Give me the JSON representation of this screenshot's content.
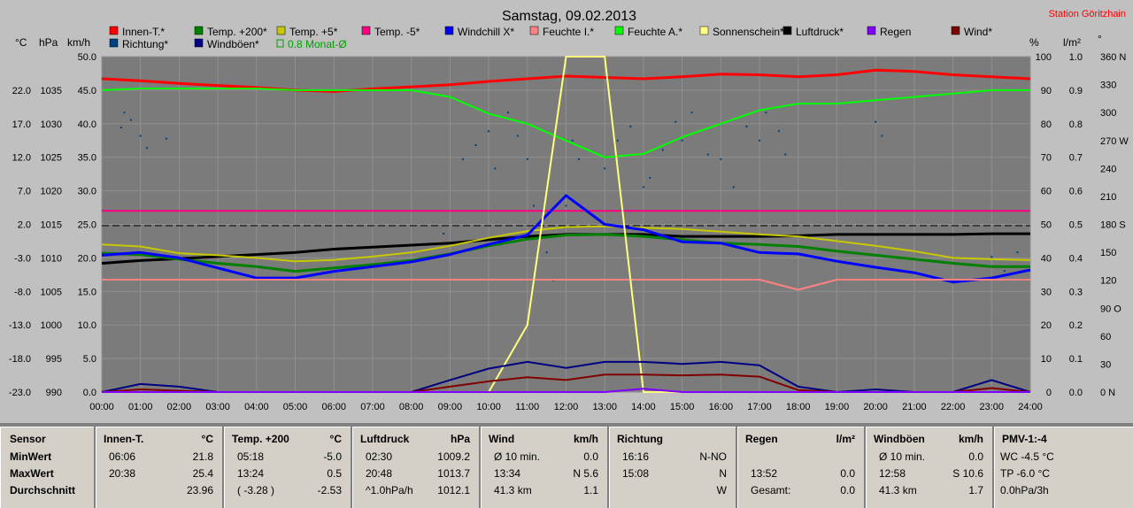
{
  "title": "Samstag, 09.02.2013",
  "station": "Station Göritzhain",
  "legend": [
    {
      "label": "Innen-T.*",
      "color": "#ff0000"
    },
    {
      "label": "Temp. +200*",
      "color": "#008000"
    },
    {
      "label": "Temp. +5*",
      "color": "#c8c800"
    },
    {
      "label": "Temp. -5*",
      "color": "#ff0080"
    },
    {
      "label": "Windchill X*",
      "color": "#0000ff"
    },
    {
      "label": "Feuchte I.*",
      "color": "#ff8080"
    },
    {
      "label": "Feuchte A.*",
      "color": "#00ff00"
    },
    {
      "label": "Sonnenschein*",
      "color": "#ffff80"
    },
    {
      "label": "Luftdruck*",
      "color": "#000000"
    },
    {
      "label": "Regen",
      "color": "#8000ff"
    },
    {
      "label": "Wind*",
      "color": "#800000"
    },
    {
      "label": "Richtung*",
      "color": "#004080"
    },
    {
      "label": "Windböen*",
      "color": "#000080"
    },
    {
      "label": "0.8 Monat-Ø",
      "color": "#00a000"
    }
  ],
  "axis_units": {
    "c": "°C",
    "hpa": "hPa",
    "kmh": "km/h",
    "pct": "%",
    "lm2": "l/m²",
    "deg": "°"
  },
  "chart_data": {
    "type": "line",
    "x": [
      "00:00",
      "01:00",
      "02:00",
      "03:00",
      "04:00",
      "05:00",
      "06:00",
      "07:00",
      "08:00",
      "09:00",
      "10:00",
      "11:00",
      "12:00",
      "13:00",
      "14:00",
      "15:00",
      "16:00",
      "17:00",
      "18:00",
      "19:00",
      "20:00",
      "21:00",
      "22:00",
      "23:00",
      "24:00"
    ],
    "axes": {
      "temp_c": {
        "ticks": [
          "22.0",
          "17.0",
          "12.0",
          "7.0",
          "2.0",
          "-3.0",
          "-8.0",
          "-13.0",
          "-18.0",
          "-23.0"
        ],
        "range": [
          -23,
          27
        ]
      },
      "pressure_hpa": {
        "ticks": [
          "1035",
          "1030",
          "1025",
          "1020",
          "1015",
          "1010",
          "1005",
          "1000",
          "995",
          "990"
        ],
        "range": [
          990,
          1040
        ]
      },
      "wind_kmh": {
        "ticks": [
          "50.0",
          "45.0",
          "40.0",
          "35.0",
          "30.0",
          "25.0",
          "20.0",
          "15.0",
          "10.0",
          "5.0",
          "0.0"
        ],
        "range": [
          0,
          50
        ]
      },
      "humidity_pct": {
        "ticks": [
          "100",
          "90",
          "80",
          "70",
          "60",
          "50",
          "40",
          "30",
          "20",
          "10",
          "0"
        ],
        "range": [
          0,
          100
        ]
      },
      "rain_lm2": {
        "ticks": [
          "1.0",
          "0.9",
          "0.8",
          "0.7",
          "0.6",
          "0.5",
          "0.4",
          "0.3",
          "0.2",
          "0.1",
          "0.0"
        ],
        "range": [
          0,
          1
        ]
      },
      "direction_deg": {
        "ticks": [
          "360 N",
          "330",
          "300",
          "270 W",
          "240",
          "210",
          "180 S",
          "150",
          "120",
          "90 O",
          "60",
          "30",
          "0 N"
        ],
        "range": [
          0,
          360
        ]
      }
    },
    "series": [
      {
        "name": "Innen-T.*",
        "color": "#ff0000",
        "axis": "temp_c",
        "values": [
          23.7,
          23.4,
          23.0,
          22.7,
          22.4,
          22.0,
          21.8,
          22.2,
          22.5,
          22.8,
          23.3,
          23.7,
          24.1,
          23.9,
          23.7,
          24.0,
          24.4,
          24.3,
          24.0,
          24.3,
          25.0,
          24.8,
          24.3,
          24.0,
          23.7
        ]
      },
      {
        "name": "Feuchte A.*",
        "color": "#00ff00",
        "axis": "humidity_pct",
        "values": [
          90,
          90.5,
          90.5,
          90.5,
          90.5,
          90,
          90,
          90,
          90,
          88,
          83,
          80,
          75,
          70,
          71,
          76,
          80,
          84,
          86,
          86,
          87,
          88,
          89,
          90,
          90
        ]
      },
      {
        "name": "Temp. -5*",
        "color": "#ff0080",
        "axis": "temp_c",
        "values": [
          4.0,
          4.0,
          4.0,
          4.0,
          4.0,
          4.0,
          4.0,
          4.0,
          4.0,
          4.0,
          4.0,
          4.0,
          4.0,
          4.0,
          4.0,
          4.0,
          4.0,
          4.0,
          4.0,
          4.0,
          4.0,
          4.0,
          4.0,
          4.0,
          4.0
        ]
      },
      {
        "name": "Luftdruck*",
        "color": "#000000",
        "axis": "pressure_hpa",
        "values": [
          1009.2,
          1009.6,
          1009.9,
          1010.2,
          1010.5,
          1010.8,
          1011.3,
          1011.6,
          1011.9,
          1012.2,
          1012.7,
          1013.2,
          1013.5,
          1013.5,
          1013.5,
          1013.2,
          1013.2,
          1013.2,
          1013.3,
          1013.5,
          1013.5,
          1013.5,
          1013.5,
          1013.6,
          1013.6
        ]
      },
      {
        "name": "Temp. +5*",
        "color": "#c8c800",
        "axis": "temp_c",
        "values": [
          -1.0,
          -1.3,
          -2.3,
          -2.6,
          -3.0,
          -3.5,
          -3.3,
          -2.8,
          -2.2,
          -1.2,
          0.0,
          1.0,
          1.6,
          1.7,
          1.5,
          1.3,
          0.9,
          0.5,
          0.2,
          -0.5,
          -1.2,
          -2.0,
          -3.0,
          -3.2,
          -3.3
        ]
      },
      {
        "name": "Temp. +200*",
        "color": "#008000",
        "axis": "temp_c",
        "values": [
          -2.3,
          -2.5,
          -3.2,
          -3.8,
          -4.3,
          -5.0,
          -4.5,
          -4.0,
          -3.4,
          -2.4,
          -1.2,
          -0.2,
          0.4,
          0.5,
          0.2,
          -0.3,
          -0.8,
          -1.0,
          -1.3,
          -2.0,
          -2.6,
          -3.2,
          -3.8,
          -4.3,
          -4.3
        ]
      },
      {
        "name": "Windchill X*",
        "color": "#0000ff",
        "axis": "temp_c",
        "values": [
          -2.6,
          -2.2,
          -3.0,
          -4.5,
          -6.0,
          -6.0,
          -5.0,
          -4.3,
          -3.6,
          -2.5,
          -1.0,
          0.4,
          6.3,
          2.0,
          1.2,
          -0.6,
          -0.8,
          -2.2,
          -2.4,
          -3.5,
          -4.4,
          -5.2,
          -6.6,
          -6.0,
          -4.8
        ]
      },
      {
        "name": "Feuchte I.*",
        "color": "#ff8080",
        "axis": "humidity_pct",
        "values": [
          33.5,
          33.5,
          33.5,
          33.5,
          33.5,
          33.5,
          33.5,
          33.5,
          33.5,
          33.5,
          33.5,
          33.5,
          33.5,
          33.5,
          33.5,
          33.5,
          33.5,
          33.5,
          30.5,
          33.5,
          33.5,
          33.5,
          33.5,
          33.5,
          33.5
        ]
      },
      {
        "name": "Sonnenschein*",
        "color": "#ffff80",
        "axis": "humidity_pct",
        "values": [
          0,
          0,
          0,
          0,
          0,
          0,
          0,
          0,
          0,
          0,
          0,
          20,
          100,
          100,
          0,
          0,
          0,
          0,
          0,
          0,
          0,
          0,
          0,
          0,
          0
        ]
      },
      {
        "name": "Windböen*",
        "color": "#000080",
        "axis": "wind_kmh",
        "values": [
          0,
          1.2,
          0.8,
          0,
          0,
          0,
          0,
          0,
          0,
          1.8,
          3.5,
          4.5,
          3.6,
          4.5,
          4.5,
          4.2,
          4.5,
          4.0,
          0.8,
          0,
          0.4,
          0,
          0,
          1.8,
          0
        ]
      },
      {
        "name": "Wind*",
        "color": "#800000",
        "axis": "wind_kmh",
        "values": [
          0,
          0.4,
          0.2,
          0,
          0,
          0,
          0,
          0,
          0,
          0.8,
          1.6,
          2.2,
          1.8,
          2.6,
          2.6,
          2.5,
          2.6,
          2.3,
          0.3,
          0,
          0,
          0,
          0,
          0.6,
          0
        ]
      },
      {
        "name": "Regen",
        "color": "#8000ff",
        "axis": "rain_lm2",
        "values": [
          0,
          0,
          0,
          0,
          0,
          0,
          0,
          0,
          0,
          0,
          0,
          0,
          0,
          0,
          0.01,
          0,
          0,
          0,
          0,
          0,
          0,
          0,
          0,
          0,
          0
        ]
      }
    ],
    "scatter": {
      "name": "Richtung*",
      "color": "#004080",
      "axis": "direction_deg",
      "points": [
        [
          "00:30",
          284
        ],
        [
          "00:35",
          300
        ],
        [
          "00:45",
          292
        ],
        [
          "01:00",
          275
        ],
        [
          "01:10",
          262
        ],
        [
          "01:40",
          272
        ],
        [
          "08:50",
          170
        ],
        [
          "09:20",
          250
        ],
        [
          "09:40",
          265
        ],
        [
          "10:00",
          280
        ],
        [
          "10:10",
          240
        ],
        [
          "10:30",
          300
        ],
        [
          "10:45",
          275
        ],
        [
          "11:00",
          250
        ],
        [
          "11:10",
          200
        ],
        [
          "11:30",
          150
        ],
        [
          "11:40",
          120
        ],
        [
          "12:00",
          200
        ],
        [
          "12:10",
          270
        ],
        [
          "12:20",
          250
        ],
        [
          "13:00",
          240
        ],
        [
          "13:20",
          270
        ],
        [
          "13:40",
          285
        ],
        [
          "14:00",
          220
        ],
        [
          "14:10",
          230
        ],
        [
          "14:30",
          260
        ],
        [
          "14:50",
          290
        ],
        [
          "15:00",
          270
        ],
        [
          "15:15",
          300
        ],
        [
          "15:40",
          255
        ],
        [
          "16:00",
          250
        ],
        [
          "16:20",
          220
        ],
        [
          "16:40",
          285
        ],
        [
          "17:00",
          270
        ],
        [
          "17:10",
          300
        ],
        [
          "17:30",
          280
        ],
        [
          "17:40",
          255
        ],
        [
          "20:00",
          290
        ],
        [
          "20:10",
          275
        ],
        [
          "23:00",
          145
        ],
        [
          "23:20",
          130
        ],
        [
          "23:40",
          150
        ]
      ]
    },
    "dashed_reference": {
      "axis": "wind_kmh",
      "value": 24.8
    },
    "title": "Samstag, 09.02.2013"
  },
  "table": {
    "rowlabels": [
      "Sensor",
      "MinWert",
      "MaxWert",
      "Durchschnitt"
    ],
    "panels": [
      {
        "title": "Innen-T.",
        "unit": "°C",
        "rows": [
          [
            "06:06",
            "",
            "21.8"
          ],
          [
            "20:38",
            "",
            "25.4"
          ],
          [
            "",
            "",
            "23.96"
          ]
        ]
      },
      {
        "title": "Temp. +200",
        "unit": "°C",
        "rows": [
          [
            "05:18",
            "",
            "-5.0"
          ],
          [
            "13:24",
            "",
            "0.5"
          ],
          [
            "( -3.28 )",
            "",
            "-2.53"
          ]
        ]
      },
      {
        "title": "Luftdruck",
        "unit": "hPa",
        "rows": [
          [
            "02:30",
            "",
            "1009.2"
          ],
          [
            "20:48",
            "",
            "1013.7"
          ],
          [
            "^1.0hPa/h",
            "",
            "1012.1"
          ]
        ]
      },
      {
        "title": "Wind",
        "unit": "km/h",
        "rows": [
          [
            "Ø 10 min.",
            "",
            "0.0"
          ],
          [
            "13:34",
            "",
            "N 5.6"
          ],
          [
            "41.3 km",
            "",
            "1.1"
          ]
        ]
      },
      {
        "title": "Richtung",
        "unit": "",
        "rows": [
          [
            "16:16",
            "",
            "N-NO"
          ],
          [
            "15:08",
            "",
            "N"
          ],
          [
            "",
            "",
            "W"
          ]
        ]
      },
      {
        "title": "Regen",
        "unit": "l/m²",
        "rows": [
          [
            "",
            "",
            ""
          ],
          [
            "13:52",
            "",
            "0.0"
          ],
          [
            "Gesamt:",
            "",
            "0.0"
          ]
        ]
      },
      {
        "title": "Windböen",
        "unit": "km/h",
        "rows": [
          [
            "Ø 10 min.",
            "",
            "0.0"
          ],
          [
            "12:58",
            "",
            "S 10.6"
          ],
          [
            "41.3 km",
            "",
            "1.7"
          ]
        ]
      },
      {
        "title": "PMV-1:-4",
        "unit": "",
        "rows": [
          [
            "WC -4.5 °C",
            "",
            ""
          ],
          [
            "TP -6.0 °C",
            "",
            ""
          ],
          [
            "0.0hPa/3h",
            "",
            ""
          ]
        ]
      }
    ]
  }
}
